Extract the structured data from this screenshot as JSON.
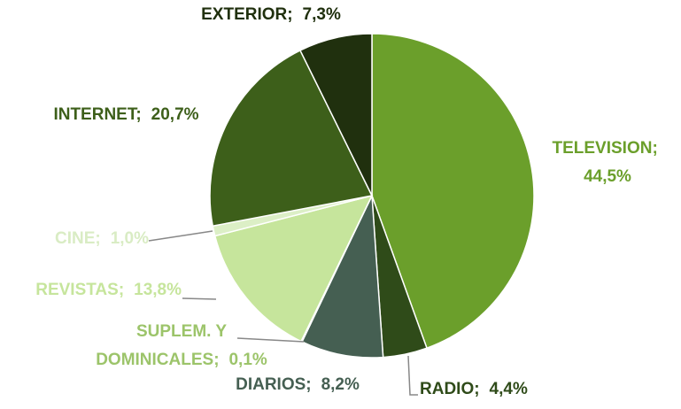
{
  "chart_data": {
    "type": "pie",
    "categories": [
      "TELEVISION",
      "RADIO",
      "DIARIOS",
      "SUPLEM. Y DOMINICALES",
      "REVISTAS",
      "CINE",
      "INTERNET",
      "EXTERIOR"
    ],
    "values": [
      44.5,
      4.4,
      8.2,
      0.1,
      13.8,
      1.0,
      20.7,
      7.3
    ],
    "value_labels": [
      "44,5%",
      "4,4%",
      "8,2%",
      "0,1%",
      "13,8%",
      "1,0%",
      "20,7%",
      "7,3%"
    ],
    "label_separator": ";",
    "colors": [
      "#6b9f2b",
      "#2f4b19",
      "#455f52",
      "#6f8f45",
      "#c6e59c",
      "#dcefc6",
      "#3d5f1a",
      "#20300e"
    ],
    "label_colors": [
      "#6b9f2b",
      "#2f4b19",
      "#455f52",
      "#9cc46a",
      "#c6e59c",
      "#d9ecc4",
      "#3d5f1a",
      "#20300e"
    ]
  }
}
